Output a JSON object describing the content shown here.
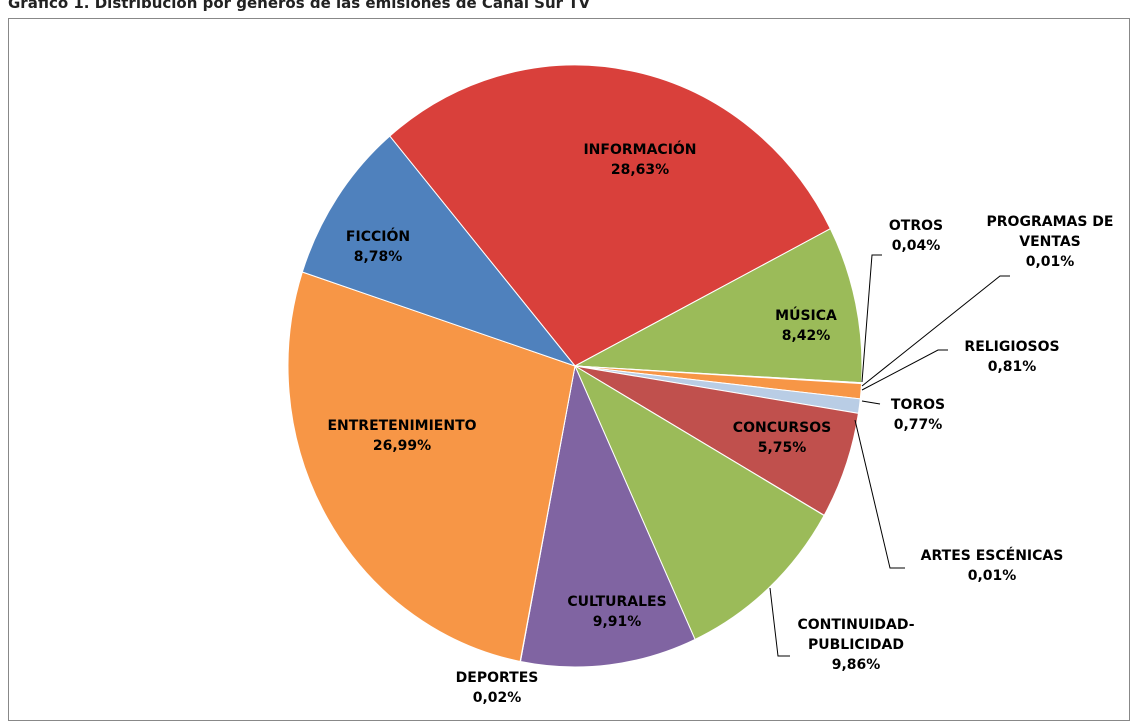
{
  "chart_data": {
    "type": "pie",
    "title": "Gráfico 1. Distribución por géneros de las emisiones de Canal Sur TV",
    "categories": [
      "INFORMACIÓN",
      "MÚSICA",
      "OTROS",
      "PROGRAMAS DE VENTAS",
      "RELIGIOSOS",
      "TOROS",
      "CONCURSOS",
      "ARTES ESCÉNICAS",
      "CONTINUIDAD-PUBLICIDAD",
      "CULTURALES",
      "DEPORTES",
      "ENTRETENIMIENTO",
      "FICCIÓN"
    ],
    "values": [
      28.63,
      8.42,
      0.04,
      0.01,
      0.81,
      0.77,
      5.75,
      0.01,
      9.86,
      9.91,
      0.02,
      26.99,
      8.78
    ],
    "value_labels": [
      "28,63%",
      "8,42%",
      "0,04%",
      "0,01%",
      "0,81%",
      "0,77%",
      "5,75%",
      "0,01%",
      "9,86%",
      "9,91%",
      "0,02%",
      "26,99%",
      "8,78%"
    ],
    "colors": [
      "#d9403b",
      "#9bbb59",
      "#8064a2",
      "#4f81bd",
      "#f79646",
      "#b9cde5",
      "#c0504d",
      "#9bbb59",
      "#9bbb59",
      "#8064a2",
      "#4f81bd",
      "#f79646",
      "#4f81bd"
    ]
  }
}
